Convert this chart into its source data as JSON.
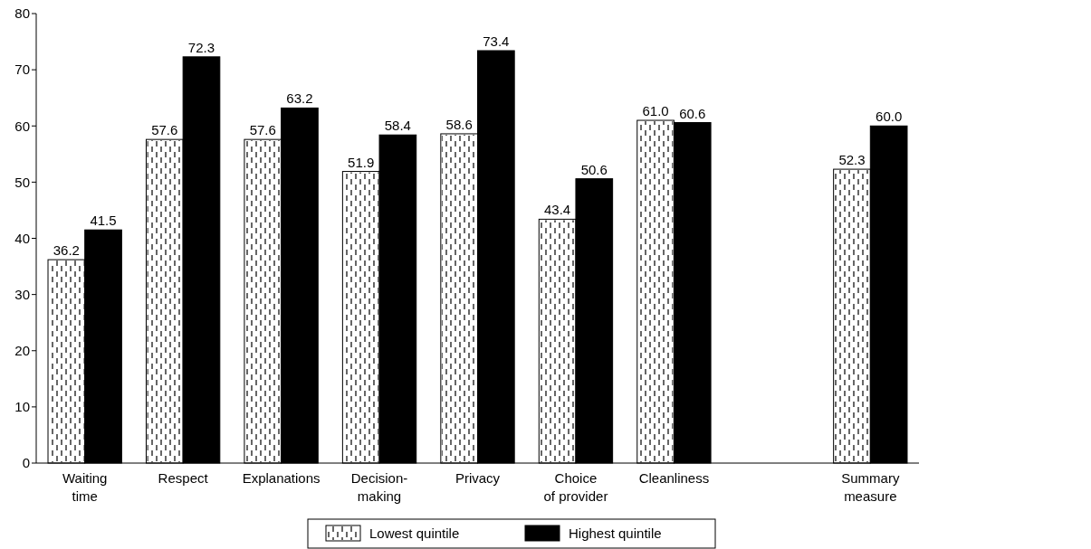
{
  "chart_data": {
    "type": "bar",
    "categories": [
      "Waiting time",
      "Respect",
      "Explanations",
      "Decision-making",
      "Privacy",
      "Choice of provider",
      "Cleanliness",
      null,
      "Summary measure"
    ],
    "series": [
      {
        "name": "Lowest quintile",
        "color": "#ffffff",
        "values": [
          36.2,
          57.6,
          57.6,
          51.9,
          58.6,
          43.4,
          61.0,
          null,
          52.3
        ],
        "value_labels": [
          "36.2",
          "57.6",
          "57.6",
          "51.9",
          "58.6",
          "43.4",
          "61.0",
          null,
          "52.3"
        ]
      },
      {
        "name": "Highest quintile",
        "color": "#000000",
        "values": [
          41.5,
          72.3,
          63.2,
          58.4,
          73.4,
          50.6,
          60.6,
          null,
          60.0
        ],
        "value_labels": [
          "41.5",
          "72.3",
          "63.2",
          "58.4",
          "73.4",
          "50.6",
          "60.6",
          null,
          "60.0"
        ]
      }
    ],
    "ylim": [
      0,
      80
    ],
    "yticks": [
      0,
      10,
      20,
      30,
      40,
      50,
      60,
      70,
      80
    ],
    "grid": false,
    "legend": "bottom"
  }
}
